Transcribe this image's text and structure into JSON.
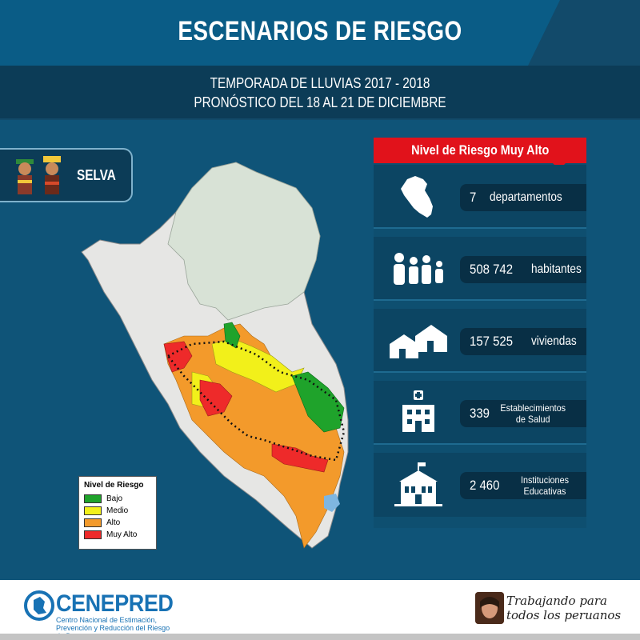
{
  "header": {
    "title": "ESCENARIOS DE RIESGO",
    "subtitle_line1": "TEMPORADA DE LLUVIAS 2017 - 2018",
    "subtitle_line2": "PRONÓSTICO DEL 18 AL 21 DE DICIEMBRE"
  },
  "region": {
    "label": "SELVA"
  },
  "legend": {
    "title": "Nivel de Riesgo",
    "items": [
      {
        "label": "Bajo",
        "color": "#1fa32b"
      },
      {
        "label": "Medio",
        "color": "#f2f01a"
      },
      {
        "label": "Alto",
        "color": "#f39a2b"
      },
      {
        "label": "Muy Alto",
        "color": "#ee2a2a"
      }
    ]
  },
  "panel": {
    "header": "Nivel de Riesgo Muy Alto",
    "stats": [
      {
        "icon": "peru-map-icon",
        "number": "7",
        "unit": "departamentos"
      },
      {
        "icon": "population-icon",
        "number": "508 742",
        "unit": "habitantes"
      },
      {
        "icon": "houses-icon",
        "number": "157 525",
        "unit": "viviendas"
      },
      {
        "icon": "hospital-icon",
        "number": "339",
        "unit": "Establecimientos de Salud"
      },
      {
        "icon": "school-icon",
        "number": "2 460",
        "unit": "Instituciones Educativas"
      }
    ]
  },
  "footer": {
    "logo": "CENEPRED",
    "logo_sub": "Centro Nacional de Estimación, Prevención y Reducción del Riesgo de Desastres",
    "motto": "Trabajando para todos los peruanos"
  },
  "colors": {
    "background": "#0f5478",
    "accent_red": "#e1121b",
    "header_dark": "#0c3c57"
  }
}
